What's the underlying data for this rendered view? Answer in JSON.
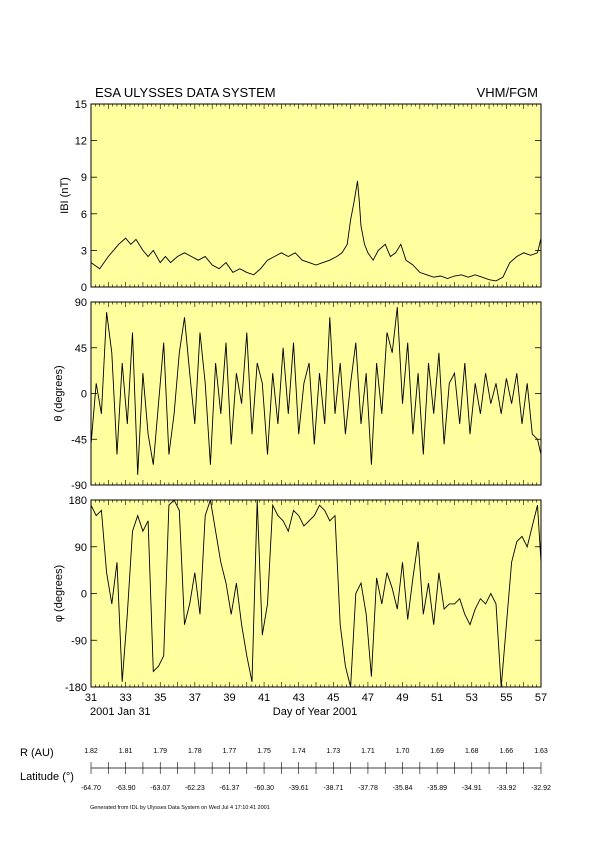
{
  "header": {
    "title": "ESA ULYSSES DATA SYSTEM",
    "instrument": "VHM/FGM"
  },
  "chart_data": [
    {
      "type": "line",
      "ylabel": "IBI (nT)",
      "ylim": [
        0,
        15
      ],
      "yticks": [
        "0",
        "3",
        "6",
        "9",
        "12",
        "15"
      ],
      "background": "#ffffa0",
      "x": [
        31,
        31.5,
        32,
        32.3,
        32.6,
        33,
        33.3,
        33.6,
        34,
        34.3,
        34.6,
        35,
        35.3,
        35.6,
        36,
        36.4,
        36.8,
        37.2,
        37.6,
        38,
        38.4,
        38.8,
        39.2,
        39.6,
        40,
        40.4,
        40.8,
        41.2,
        41.6,
        42,
        42.4,
        42.8,
        43.2,
        43.6,
        44,
        44.4,
        44.8,
        45.2,
        45.5,
        45.8,
        46,
        46.2,
        46.4,
        46.5,
        46.6,
        46.8,
        47,
        47.3,
        47.6,
        48,
        48.3,
        48.6,
        48.9,
        49.2,
        49.6,
        50,
        50.4,
        50.8,
        51.2,
        51.6,
        52,
        52.4,
        52.8,
        53.2,
        53.6,
        54,
        54.4,
        54.8,
        55.2,
        55.6,
        56,
        56.4,
        56.8,
        57
      ],
      "values": [
        2,
        1.5,
        2.5,
        3,
        3.5,
        4,
        3.5,
        3.9,
        3,
        2.5,
        3,
        2,
        2.5,
        2,
        2.5,
        2.8,
        2.5,
        2.2,
        2.5,
        1.8,
        1.5,
        2,
        1.2,
        1.5,
        1.2,
        1,
        1.5,
        2.2,
        2.5,
        2.8,
        2.5,
        2.8,
        2.2,
        2,
        1.8,
        2,
        2.2,
        2.5,
        2.8,
        3.5,
        5.5,
        7,
        8.7,
        7,
        5,
        3.5,
        2.8,
        2.2,
        3,
        3.5,
        2.5,
        2.8,
        3.5,
        2.2,
        1.8,
        1.2,
        1,
        0.8,
        0.9,
        0.7,
        0.9,
        1,
        0.8,
        1,
        0.8,
        0.6,
        0.5,
        0.8,
        2,
        2.5,
        2.8,
        2.6,
        2.8,
        4
      ]
    },
    {
      "type": "line",
      "ylabel": "θ (degrees)",
      "ylim": [
        -90,
        90
      ],
      "yticks": [
        "-90",
        "-45",
        "0",
        "45",
        "90"
      ],
      "background": "#ffffa0",
      "x": [
        31,
        31.3,
        31.6,
        31.9,
        32.2,
        32.5,
        32.8,
        33.1,
        33.4,
        33.7,
        34,
        34.3,
        34.6,
        34.9,
        35.2,
        35.5,
        35.8,
        36.1,
        36.4,
        36.7,
        37,
        37.3,
        37.6,
        37.9,
        38.2,
        38.5,
        38.8,
        39.1,
        39.4,
        39.7,
        40,
        40.3,
        40.6,
        40.9,
        41.2,
        41.5,
        41.8,
        42.1,
        42.4,
        42.7,
        43,
        43.3,
        43.6,
        43.9,
        44.2,
        44.5,
        44.8,
        45.1,
        45.4,
        45.7,
        46,
        46.3,
        46.6,
        46.9,
        47.2,
        47.5,
        47.8,
        48.1,
        48.4,
        48.7,
        49,
        49.3,
        49.6,
        49.9,
        50.2,
        50.5,
        50.8,
        51.1,
        51.4,
        51.7,
        52,
        52.3,
        52.6,
        52.9,
        53.2,
        53.5,
        53.8,
        54.1,
        54.4,
        54.7,
        55,
        55.3,
        55.6,
        55.9,
        56.2,
        56.5,
        56.8,
        57
      ],
      "values": [
        -50,
        10,
        -20,
        80,
        40,
        -60,
        30,
        -30,
        60,
        -80,
        20,
        -40,
        -70,
        -10,
        50,
        -60,
        -20,
        40,
        75,
        20,
        -30,
        60,
        10,
        -70,
        30,
        -20,
        50,
        -50,
        20,
        -10,
        60,
        -40,
        30,
        10,
        -60,
        20,
        -30,
        45,
        -20,
        50,
        -40,
        10,
        30,
        -50,
        20,
        -30,
        75,
        -20,
        30,
        -40,
        10,
        50,
        -30,
        20,
        -70,
        30,
        -20,
        60,
        40,
        85,
        -10,
        50,
        -40,
        20,
        -60,
        30,
        -20,
        40,
        -50,
        10,
        20,
        -30,
        30,
        -40,
        10,
        -20,
        20,
        -10,
        10,
        -20,
        15,
        -10,
        20,
        -30,
        10,
        -40,
        -45,
        -60
      ]
    },
    {
      "type": "line",
      "ylabel": "φ (degrees)",
      "ylim": [
        -180,
        180
      ],
      "yticks": [
        "-180",
        "-90",
        "0",
        "90",
        "180"
      ],
      "background": "#ffffa0",
      "x": [
        31,
        31.3,
        31.6,
        31.9,
        32.2,
        32.5,
        32.8,
        33.1,
        33.4,
        33.7,
        34,
        34.3,
        34.6,
        34.9,
        35.2,
        35.5,
        35.8,
        36.1,
        36.4,
        36.7,
        37,
        37.3,
        37.6,
        37.9,
        38.2,
        38.5,
        38.8,
        39.1,
        39.4,
        39.7,
        40,
        40.3,
        40.6,
        40.9,
        41.2,
        41.5,
        41.8,
        42.1,
        42.4,
        42.7,
        43,
        43.3,
        43.6,
        43.9,
        44.2,
        44.5,
        44.8,
        45.1,
        45.4,
        45.7,
        46,
        46.3,
        46.6,
        46.9,
        47.2,
        47.5,
        47.8,
        48.1,
        48.4,
        48.7,
        49,
        49.3,
        49.6,
        49.9,
        50.2,
        50.5,
        50.8,
        51.1,
        51.4,
        51.7,
        52,
        52.3,
        52.6,
        52.9,
        53.2,
        53.5,
        53.8,
        54.1,
        54.4,
        54.7,
        55,
        55.3,
        55.6,
        55.9,
        56.2,
        56.5,
        56.8,
        57
      ],
      "values": [
        170,
        150,
        160,
        40,
        -20,
        60,
        -170,
        -40,
        120,
        150,
        120,
        140,
        -150,
        -140,
        -120,
        170,
        180,
        160,
        -60,
        -20,
        40,
        -40,
        150,
        180,
        120,
        60,
        20,
        -40,
        20,
        -60,
        -120,
        -170,
        180,
        -80,
        -20,
        170,
        150,
        140,
        120,
        160,
        150,
        130,
        140,
        150,
        170,
        160,
        140,
        150,
        -60,
        -140,
        -180,
        0,
        20,
        -40,
        -160,
        30,
        -20,
        40,
        10,
        -30,
        60,
        -50,
        30,
        100,
        -40,
        20,
        -60,
        40,
        -30,
        -20,
        -20,
        -10,
        -40,
        -60,
        -30,
        -10,
        -20,
        0,
        -20,
        -180,
        -60,
        60,
        100,
        110,
        90,
        130,
        170,
        60
      ]
    }
  ],
  "x_axis": {
    "ticks": [
      "31",
      "33",
      "35",
      "37",
      "39",
      "41",
      "43",
      "45",
      "47",
      "49",
      "51",
      "53",
      "55",
      "57"
    ],
    "start_date": "2001 Jan 31",
    "label": "Day of Year 2001"
  },
  "ephemeris": {
    "r_label": "R (AU)",
    "lat_label": "Latitude (°)",
    "r_values": [
      "1.82",
      "1.81",
      "1.79",
      "1.78",
      "1.77",
      "1.75",
      "1.74",
      "1.73",
      "1.71",
      "1.70",
      "1.69",
      "1.68",
      "1.66",
      "1.63"
    ],
    "lat_values": [
      "-64.70",
      "-63.90",
      "-63.07",
      "-62.23",
      "-61.37",
      "-60.30",
      "-39.61",
      "-38.71",
      "-37.78",
      "-35.84",
      "-35.89",
      "-34.91",
      "-33.92",
      "-32.92"
    ]
  },
  "footer": "Generated from IDL by Ulysses Data System on Wed Jul  4 17:10:41 2001"
}
